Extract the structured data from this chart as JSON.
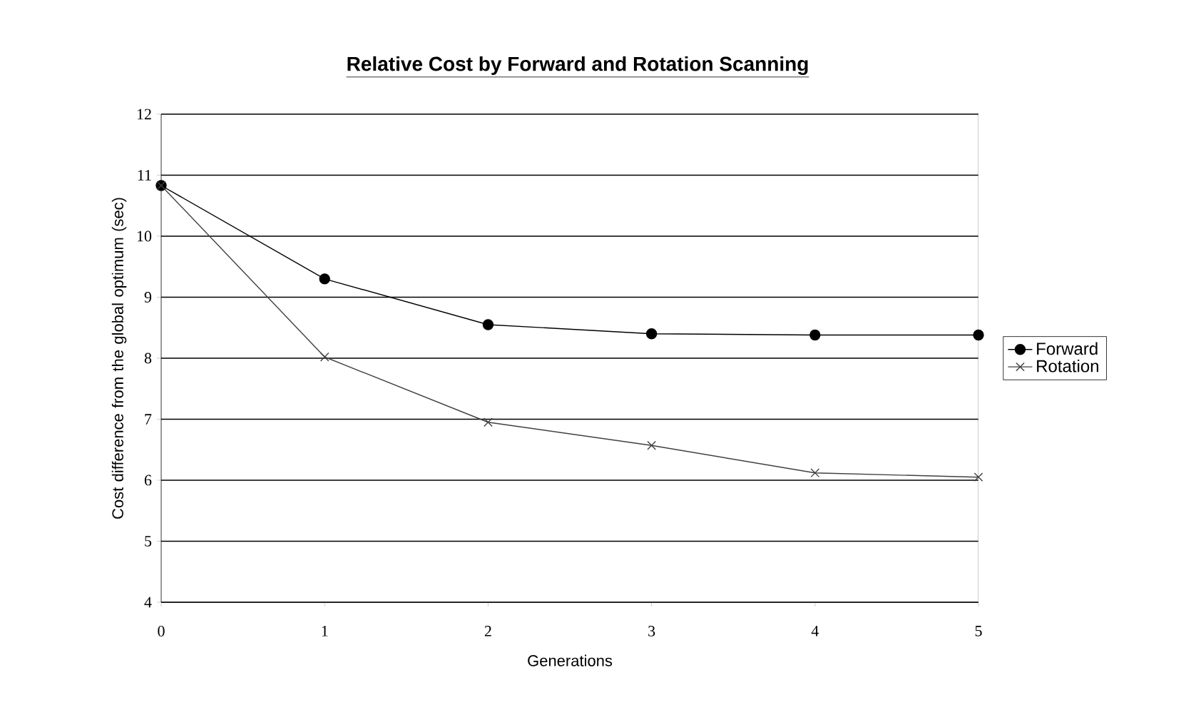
{
  "chart_data": {
    "type": "line",
    "title": "Relative Cost by Forward and Rotation Scanning",
    "xlabel": "Generations",
    "ylabel": "Cost difference from the global optimum (sec)",
    "x": [
      0,
      1,
      2,
      3,
      4,
      5
    ],
    "series": [
      {
        "name": "Forward",
        "color": "#000000",
        "marker": "circle",
        "values": [
          10.83,
          9.3,
          8.55,
          8.4,
          8.38,
          8.38
        ]
      },
      {
        "name": "Rotation",
        "color": "#404040",
        "marker": "cross",
        "values": [
          10.83,
          8.02,
          6.95,
          6.57,
          6.12,
          6.05
        ]
      }
    ],
    "xlim": [
      0,
      5
    ],
    "xticks": [
      0,
      1,
      2,
      3,
      4,
      5
    ],
    "ylim": [
      4,
      12
    ],
    "yticks": [
      4,
      5,
      6,
      7,
      8,
      9,
      10,
      11,
      12
    ],
    "grid": "y",
    "legend": "right",
    "line_style": "solid"
  }
}
